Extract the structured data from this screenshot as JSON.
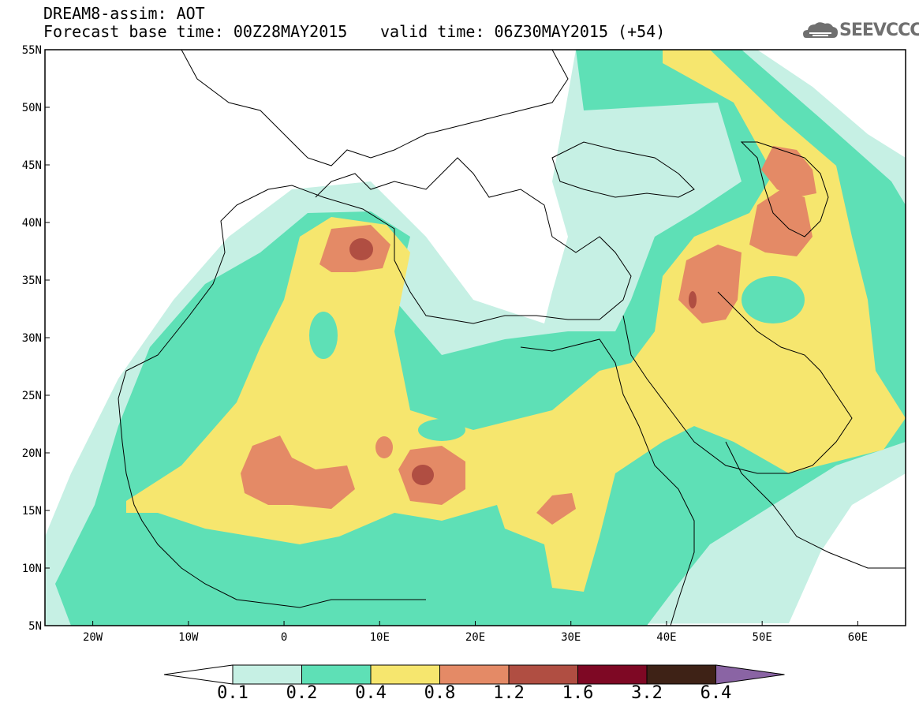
{
  "title": {
    "line1": "DREAM8-assim: AOT",
    "line2": "Forecast base time: 00Z28MAY2015",
    "valid": "valid time: 06Z30MAY2015 (+54)"
  },
  "logo": {
    "icon": "cloud-icon",
    "text": "SEEVCCC"
  },
  "map": {
    "lat_labels": [
      "55N",
      "50N",
      "45N",
      "40N",
      "35N",
      "30N",
      "25N",
      "20N",
      "15N",
      "10N",
      "5N"
    ],
    "lon_labels": [
      "20W",
      "10W",
      "0",
      "10E",
      "20E",
      "30E",
      "40E",
      "50E",
      "60E"
    ],
    "lon_range": [
      -25,
      65
    ],
    "lat_range": [
      5,
      55
    ],
    "grid": false
  },
  "colorbar": {
    "levels": [
      "0.1",
      "0.2",
      "0.4",
      "0.8",
      "1.2",
      "1.6",
      "3.2",
      "6.4"
    ],
    "colors": [
      "#ffffff",
      "#c6f0e4",
      "#5ee0b6",
      "#f6e66e",
      "#e48a66",
      "#b04e42",
      "#7e0824",
      "#3e2216",
      "#8a64a4"
    ]
  }
}
